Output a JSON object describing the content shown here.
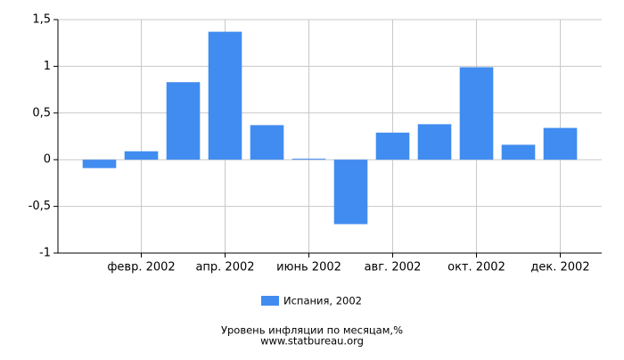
{
  "chart_data": {
    "type": "bar",
    "title": "Уровень инфляции по месяцам,%",
    "source": "www.statbureau.org",
    "categories": [
      null,
      "февр. 2002",
      null,
      "апр. 2002",
      null,
      "июнь 2002",
      null,
      "авг. 2002",
      null,
      "окт. 2002",
      null,
      "дек. 2002"
    ],
    "series": [
      {
        "name": "Испания, 2002",
        "color": "#418cf0",
        "values": [
          -0.09,
          0.09,
          0.83,
          1.37,
          0.37,
          0.01,
          -0.69,
          0.29,
          0.38,
          0.99,
          0.16,
          0.34
        ]
      }
    ],
    "ylim": [
      -1,
      1.5
    ],
    "yticks": [
      -1,
      {
        "value": -0.5,
        "label": "-0,5"
      },
      0,
      {
        "value": 0.5,
        "label": "0,5"
      },
      1,
      {
        "value": 1.5,
        "label": "1,5"
      }
    ],
    "grid": true
  }
}
